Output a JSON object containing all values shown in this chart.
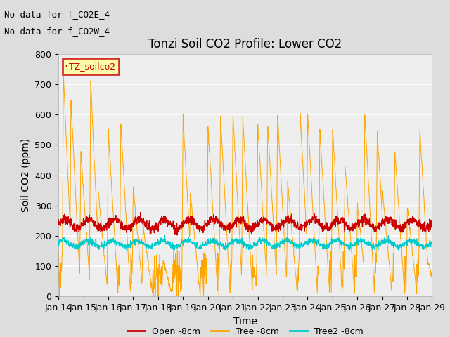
{
  "title": "Tonzi Soil CO2 Profile: Lower CO2",
  "xlabel": "Time",
  "ylabel": "Soil CO2 (ppm)",
  "ylim": [
    0,
    800
  ],
  "yticks": [
    0,
    100,
    200,
    300,
    400,
    500,
    600,
    700,
    800
  ],
  "x_labels": [
    "Jan 14",
    "Jan 15",
    "Jan 16",
    "Jan 17",
    "Jan 18",
    "Jan 19",
    "Jan 20",
    "Jan 21",
    "Jan 22",
    "Jan 23",
    "Jan 24",
    "Jan 25",
    "Jan 26",
    "Jan 27",
    "Jan 28",
    "Jan 29"
  ],
  "annotation1": "No data for f_CO2E_4",
  "annotation2": "No data for f_CO2W_4",
  "legend_label": "TZ_soilco2",
  "legend_box_color": "#FFFF99",
  "legend_box_border": "#CC0000",
  "series_labels": [
    "Open -8cm",
    "Tree -8cm",
    "Tree2 -8cm"
  ],
  "series_colors": [
    "#CC0000",
    "#FFA500",
    "#00CCCC"
  ],
  "background_color": "#DDDDDD",
  "plot_bg_color": "#EEEEEE",
  "grid_color": "#FFFFFF",
  "title_fontsize": 12,
  "axis_fontsize": 10,
  "tick_fontsize": 9,
  "annot_fontsize": 9
}
